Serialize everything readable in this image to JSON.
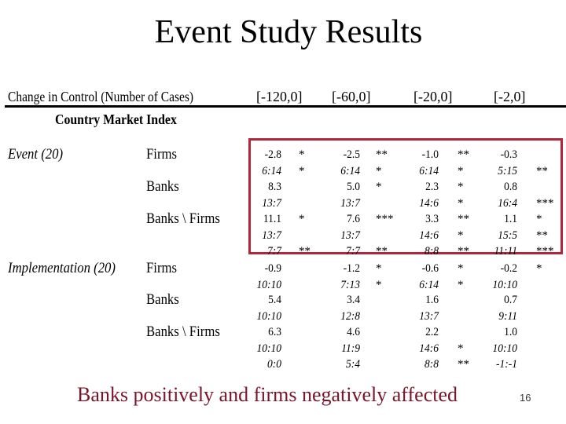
{
  "slide": {
    "title": "Event Study Results",
    "footer": "Banks positively and firms negatively affected",
    "slide_number": "16"
  },
  "table": {
    "header": "Change in Control (Number of Cases)",
    "subheader": "Country Market Index",
    "windows": [
      "[-120,0]",
      "[-60,0]",
      "[-20,0]",
      "[-2,0]"
    ],
    "sections": [
      {
        "label": "Event (20)",
        "rows": [
          {
            "group": "Firms",
            "lines": [
              [
                [
                  "-2.8",
                  "*"
                ],
                [
                  "-2.5",
                  "**"
                ],
                [
                  "-1.0",
                  "**"
                ],
                [
                  "-0.3",
                  ""
                ]
              ],
              [
                [
                  "6:14",
                  "*"
                ],
                [
                  "6:14",
                  "*"
                ],
                [
                  "6:14",
                  "*"
                ],
                [
                  "5:15",
                  "**"
                ]
              ]
            ]
          },
          {
            "group": "Banks",
            "lines": [
              [
                [
                  "8.3",
                  ""
                ],
                [
                  "5.0",
                  "*"
                ],
                [
                  "2.3",
                  "*"
                ],
                [
                  "0.8",
                  ""
                ]
              ],
              [
                [
                  "13:7",
                  ""
                ],
                [
                  "13:7",
                  ""
                ],
                [
                  "14:6",
                  "*"
                ],
                [
                  "16:4",
                  "***"
                ]
              ]
            ]
          },
          {
            "group": "Banks \\ Firms",
            "lines": [
              [
                [
                  "11.1",
                  "*"
                ],
                [
                  "7.6",
                  "***"
                ],
                [
                  "3.3",
                  "**"
                ],
                [
                  "1.1",
                  "*"
                ]
              ],
              [
                [
                  "13:7",
                  ""
                ],
                [
                  "13:7",
                  ""
                ],
                [
                  "14:6",
                  "*"
                ],
                [
                  "15:5",
                  "**"
                ]
              ],
              [
                [
                  "7:7",
                  "**"
                ],
                [
                  "7:7",
                  "**"
                ],
                [
                  "8:8",
                  "**"
                ],
                [
                  "11:11",
                  "***"
                ]
              ]
            ]
          }
        ]
      },
      {
        "label": "Implementation (20)",
        "rows": [
          {
            "group": "Firms",
            "lines": [
              [
                [
                  "-0.9",
                  ""
                ],
                [
                  "-1.2",
                  "*"
                ],
                [
                  "-0.6",
                  "*"
                ],
                [
                  "-0.2",
                  "*"
                ]
              ],
              [
                [
                  "10:10",
                  ""
                ],
                [
                  "7:13",
                  "*"
                ],
                [
                  "6:14",
                  "*"
                ],
                [
                  "10:10",
                  ""
                ]
              ]
            ]
          },
          {
            "group": "Banks",
            "lines": [
              [
                [
                  "5.4",
                  ""
                ],
                [
                  "3.4",
                  ""
                ],
                [
                  "1.6",
                  ""
                ],
                [
                  "0.7",
                  ""
                ]
              ],
              [
                [
                  "10:10",
                  ""
                ],
                [
                  "12:8",
                  ""
                ],
                [
                  "13:7",
                  ""
                ],
                [
                  "9:11",
                  ""
                ]
              ]
            ]
          },
          {
            "group": "Banks \\ Firms",
            "lines": [
              [
                [
                  "6.3",
                  ""
                ],
                [
                  "4.6",
                  ""
                ],
                [
                  "2.2",
                  ""
                ],
                [
                  "1.0",
                  ""
                ]
              ],
              [
                [
                  "10:10",
                  ""
                ],
                [
                  "11:9",
                  ""
                ],
                [
                  "14:6",
                  "*"
                ],
                [
                  "10:10",
                  ""
                ]
              ],
              [
                [
                  "0:0",
                  ""
                ],
                [
                  "5:4",
                  ""
                ],
                [
                  "8:8",
                  "**"
                ],
                [
                  "-1:-1",
                  ""
                ]
              ]
            ]
          }
        ]
      }
    ],
    "highlight_color": "#b3253d"
  }
}
